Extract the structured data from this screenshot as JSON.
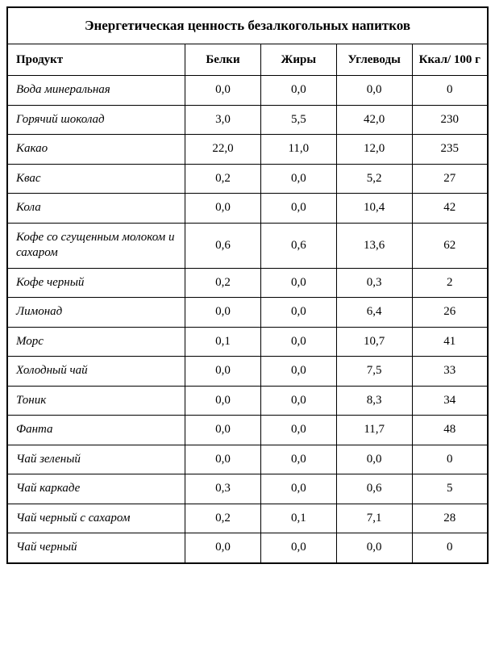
{
  "table": {
    "title": "Энергетическая ценность безалкогольных напитков",
    "columns": [
      "Продукт",
      "Белки",
      "Жиры",
      "Углеводы",
      "Ккал/ 100 г"
    ],
    "title_fontsize": 17,
    "header_fontsize": 15,
    "body_fontsize": 15,
    "border_color": "#000000",
    "background_color": "#ffffff",
    "product_column_width_pct": 37,
    "value_column_width_pct": 15.75,
    "product_style": "italic",
    "value_align": "center",
    "rows": [
      {
        "name": "Вода минеральная",
        "protein": "0,0",
        "fat": "0,0",
        "carbs": "0,0",
        "kcal": "0"
      },
      {
        "name": "Горячий шоколад",
        "protein": "3,0",
        "fat": "5,5",
        "carbs": "42,0",
        "kcal": "230"
      },
      {
        "name": "Какао",
        "protein": "22,0",
        "fat": "11,0",
        "carbs": "12,0",
        "kcal": "235"
      },
      {
        "name": "Квас",
        "protein": "0,2",
        "fat": "0,0",
        "carbs": "5,2",
        "kcal": "27"
      },
      {
        "name": "Кола",
        "protein": "0,0",
        "fat": "0,0",
        "carbs": "10,4",
        "kcal": "42"
      },
      {
        "name": "Кофе со сгущенным молоком и сахаром",
        "protein": "0,6",
        "fat": "0,6",
        "carbs": "13,6",
        "kcal": "62"
      },
      {
        "name": "Кофе черный",
        "protein": "0,2",
        "fat": "0,0",
        "carbs": "0,3",
        "kcal": "2"
      },
      {
        "name": "Лимонад",
        "protein": "0,0",
        "fat": "0,0",
        "carbs": "6,4",
        "kcal": "26"
      },
      {
        "name": "Морс",
        "protein": "0,1",
        "fat": "0,0",
        "carbs": "10,7",
        "kcal": "41"
      },
      {
        "name": "Холодный чай",
        "protein": "0,0",
        "fat": "0,0",
        "carbs": "7,5",
        "kcal": "33"
      },
      {
        "name": "Тоник",
        "protein": "0,0",
        "fat": "0,0",
        "carbs": "8,3",
        "kcal": "34"
      },
      {
        "name": "Фанта",
        "protein": "0,0",
        "fat": "0,0",
        "carbs": "11,7",
        "kcal": "48"
      },
      {
        "name": "Чай зеленый",
        "protein": "0,0",
        "fat": "0,0",
        "carbs": "0,0",
        "kcal": "0"
      },
      {
        "name": "Чай каркаде",
        "protein": "0,3",
        "fat": "0,0",
        "carbs": "0,6",
        "kcal": "5"
      },
      {
        "name": "Чай черный с сахаром",
        "protein": "0,2",
        "fat": "0,1",
        "carbs": "7,1",
        "kcal": "28"
      },
      {
        "name": "Чай черный",
        "protein": "0,0",
        "fat": "0,0",
        "carbs": "0,0",
        "kcal": "0"
      }
    ]
  }
}
